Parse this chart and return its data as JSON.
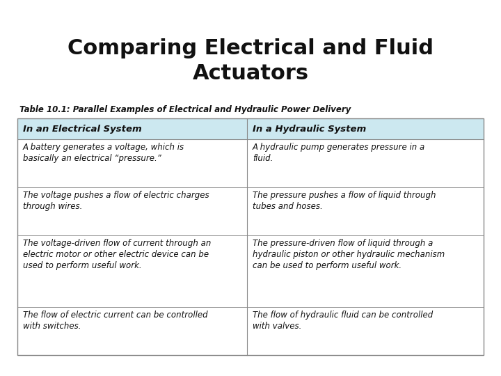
{
  "title_line1": "Comparing Electrical and Fluid",
  "title_line2": "Actuators",
  "table_caption": "Table 10.1: Parallel Examples of Electrical and Hydraulic Power Delivery",
  "header_left": "In an Electrical System",
  "header_right": "In a Hydraulic System",
  "header_bg": "#cce8f0",
  "rows_left": [
    "A battery generates a voltage, which is\nbasically an electrical “pressure.”",
    "The voltage pushes a flow of electric charges\nthrough wires.",
    "The voltage-driven flow of current through an\nelectric motor or other electric device can be\nused to perform useful work.",
    "The flow of electric current can be controlled\nwith switches."
  ],
  "rows_right": [
    "A hydraulic pump generates pressure in a\nfluid.",
    "The pressure pushes a flow of liquid through\ntubes and hoses.",
    "The pressure-driven flow of liquid through a\nhydraulic piston or other hydraulic mechanism\ncan be used to perform useful work.",
    "The flow of hydraulic fluid can be controlled\nwith valves."
  ],
  "bg_color": "#ffffff",
  "title_fontsize": 22,
  "caption_fontsize": 8.5,
  "header_fontsize": 9.5,
  "body_fontsize": 8.5,
  "table_border_color": "#888888",
  "fig_width": 7.2,
  "fig_height": 5.4,
  "fig_dpi": 100
}
